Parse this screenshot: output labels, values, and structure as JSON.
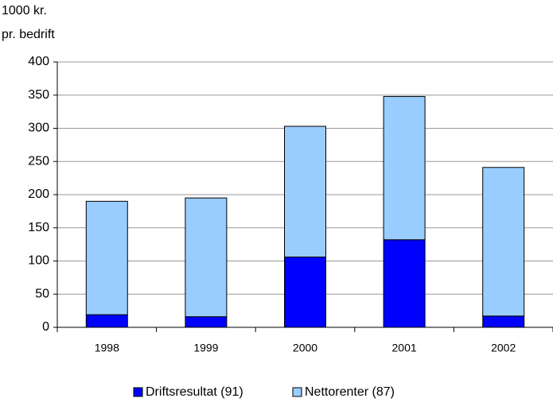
{
  "chart_data": {
    "type": "bar",
    "stacked": true,
    "y_label": [
      "1000 kr.",
      "pr. bedrift"
    ],
    "categories": [
      "1998",
      "1999",
      "2000",
      "2001",
      "2002"
    ],
    "series": [
      {
        "name": "Driftsresultat (91)",
        "color": "#0000ff",
        "values": [
          19,
          16,
          106,
          132,
          17
        ]
      },
      {
        "name": "Nettorenter (87)",
        "color": "#99ccff",
        "values": [
          171,
          179,
          197,
          216,
          224
        ]
      }
    ],
    "ylim": [
      0,
      400
    ],
    "yticks": [
      0,
      50,
      100,
      150,
      200,
      250,
      300,
      350,
      400
    ],
    "grid": true,
    "legend": "bottom"
  }
}
